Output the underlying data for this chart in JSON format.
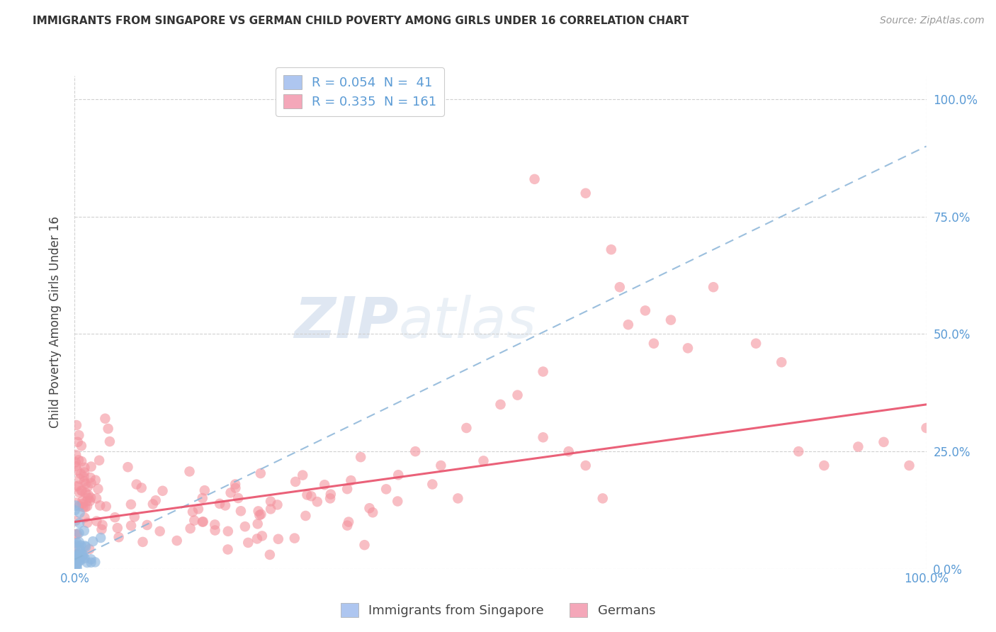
{
  "title": "IMMIGRANTS FROM SINGAPORE VS GERMAN CHILD POVERTY AMONG GIRLS UNDER 16 CORRELATION CHART",
  "source": "Source: ZipAtlas.com",
  "ylabel": "Child Poverty Among Girls Under 16",
  "watermark_zip": "ZIP",
  "watermark_atlas": "atlas",
  "singapore_R": 0.054,
  "singapore_N": 41,
  "german_R": 0.335,
  "german_N": 161,
  "singapore_scatter_color": "#90b8e0",
  "german_scatter_color": "#f4939e",
  "singapore_line_color": "#90b8e0",
  "german_line_color": "#e8506a",
  "background_color": "#ffffff",
  "grid_color": "#d0d0d0",
  "title_color": "#333333",
  "axis_label_color": "#5b9bd5",
  "legend_label_1": "R = 0.054  N =  41",
  "legend_label_2": "R = 0.335  N = 161",
  "legend_patch_color_1": "#aec6f0",
  "legend_patch_color_2": "#f4a7b9",
  "bottom_legend_label_1": "Immigrants from Singapore",
  "bottom_legend_label_2": "Germans",
  "right_ytick_labels": [
    "0.0%",
    "25.0%",
    "50.0%",
    "75.0%",
    "100.0%"
  ],
  "right_ytick_values": [
    0.0,
    0.25,
    0.5,
    0.75,
    1.0
  ],
  "xlim": [
    0.0,
    1.0
  ],
  "ylim": [
    0.0,
    1.05
  ]
}
